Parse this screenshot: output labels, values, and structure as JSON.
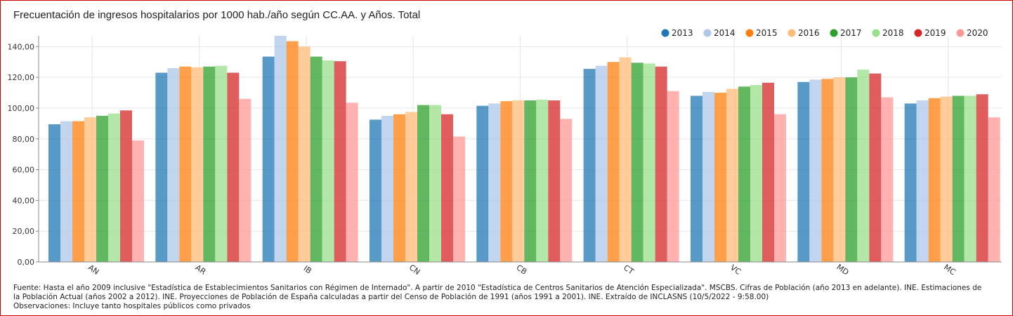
{
  "chart_data": {
    "type": "bar",
    "title": "Frecuentación de ingresos hospitalarios por 1000 hab./año según CC.AA. y Años. Total",
    "categories": [
      "AN",
      "AR",
      "IB",
      "CN",
      "CB",
      "CT",
      "VC",
      "MD",
      "MC"
    ],
    "series": [
      {
        "name": "2013",
        "color": "#1f77b4",
        "values": [
          89.5,
          123,
          133.5,
          92.5,
          101.5,
          125.5,
          108,
          117,
          103
        ]
      },
      {
        "name": "2014",
        "color": "#aec7e8",
        "values": [
          91.5,
          126,
          147,
          95,
          103,
          127.5,
          110.5,
          118.5,
          105
        ]
      },
      {
        "name": "2015",
        "color": "#ff7f0e",
        "values": [
          91.5,
          127,
          143.5,
          96,
          104.5,
          130,
          110,
          119,
          106.5
        ]
      },
      {
        "name": "2016",
        "color": "#ffbb78",
        "values": [
          94,
          126.5,
          140,
          97.5,
          105,
          133,
          112.5,
          120,
          107.5
        ]
      },
      {
        "name": "2017",
        "color": "#2ca02c",
        "values": [
          95,
          127,
          133.5,
          102,
          105,
          129.5,
          114,
          120,
          108
        ]
      },
      {
        "name": "2018",
        "color": "#98df8a",
        "values": [
          96.5,
          127.5,
          131,
          102,
          105.5,
          129,
          115,
          125,
          108
        ]
      },
      {
        "name": "2019",
        "color": "#d62728",
        "values": [
          98.5,
          123,
          130.5,
          96,
          105,
          127,
          116.5,
          122.5,
          109
        ]
      },
      {
        "name": "2020",
        "color": "#ff9896",
        "values": [
          79,
          106,
          103.5,
          81.5,
          93,
          111,
          96,
          107,
          94
        ]
      }
    ],
    "ylim": [
      0,
      147
    ],
    "yticks": [
      "0,00",
      "20,00",
      "40,00",
      "60,00",
      "80,00",
      "100,00",
      "120,00",
      "140,00"
    ],
    "ytick_values": [
      0,
      20,
      40,
      60,
      80,
      100,
      120,
      140
    ],
    "xlabel": "",
    "ylabel": "",
    "grid": true,
    "legend_position": "top-right"
  },
  "footer": {
    "source": "Fuente: Hasta el año 2009 inclusive \"Estadística de Establecimientos Sanitarios con Régimen de Internado\". A partir de 2010 \"Estadística de Centros Sanitarios de Atención Especializada\". MSCBS. Cifras de Población (año 2013 en adelante). INE. Estimaciones de la Población Actual (años 2002 a 2012). INE. Proyecciones de Población de España calculadas a partir del Censo de Población de 1991 (años 1991 a 2001). INE. Extraído de INCLASNS (10/5/2022 - 9:58.00)",
    "observations": "Observaciones: Incluye tanto hospitales públicos como privados"
  }
}
